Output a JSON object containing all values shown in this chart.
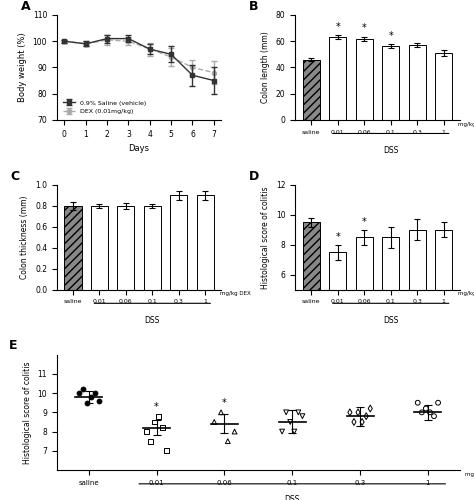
{
  "panel_A": {
    "days": [
      0,
      1,
      2,
      3,
      4,
      5,
      6,
      7
    ],
    "saline_mean": [
      100,
      99,
      101,
      101,
      97,
      95,
      87,
      85
    ],
    "saline_err": [
      0.5,
      1.0,
      1.5,
      1.2,
      2.0,
      3.0,
      4.0,
      5.0
    ],
    "dex_mean": [
      100,
      99,
      100.5,
      100,
      97,
      94,
      90,
      88
    ],
    "dex_err": [
      0.5,
      1.0,
      2.0,
      1.5,
      2.5,
      3.5,
      3.0,
      4.5
    ],
    "ylabel": "Body weight (%)",
    "xlabel": "Days",
    "ylim": [
      70,
      110
    ],
    "yticks": [
      70,
      80,
      90,
      100,
      110
    ],
    "label_saline": "0.9% Saline (vehicle)",
    "label_dex": "DEX (0.01mg/kg)"
  },
  "panel_B": {
    "categories": [
      "saline",
      "0.01",
      "0.06",
      "0.1",
      "0.3",
      "1"
    ],
    "means": [
      46,
      63,
      62,
      56,
      57,
      51
    ],
    "errors": [
      1.0,
      1.5,
      1.5,
      1.5,
      1.5,
      2.0
    ],
    "ylabel": "Colon length (mm)",
    "ylim": [
      0,
      80
    ],
    "yticks": [
      0,
      20,
      40,
      60,
      80
    ],
    "sig": [
      false,
      true,
      true,
      true,
      false,
      false
    ],
    "xlabel_dss": "DSS",
    "xlabel_mgkg": "mg/kg DEX"
  },
  "panel_C": {
    "categories": [
      "saline",
      "0.01",
      "0.06",
      "0.1",
      "0.3",
      "1"
    ],
    "means": [
      0.8,
      0.8,
      0.8,
      0.8,
      0.9,
      0.9
    ],
    "errors": [
      0.04,
      0.02,
      0.03,
      0.02,
      0.04,
      0.04
    ],
    "ylabel": "Colon thickness (mm)",
    "ylim": [
      0.0,
      1.0
    ],
    "yticks": [
      0.0,
      0.2,
      0.4,
      0.6,
      0.8,
      1.0
    ],
    "sig": [
      false,
      false,
      false,
      false,
      false,
      false
    ],
    "xlabel_dss": "DSS",
    "xlabel_mgkg": "mg/kg DEX"
  },
  "panel_D": {
    "categories": [
      "saline",
      "0.01",
      "0.06",
      "0.1",
      "0.3",
      "1"
    ],
    "means": [
      9.5,
      7.5,
      8.5,
      8.5,
      9.0,
      9.0
    ],
    "errors": [
      0.3,
      0.5,
      0.5,
      0.7,
      0.7,
      0.5
    ],
    "ylabel": "Histological score of colitis",
    "ylim": [
      5,
      12
    ],
    "yticks": [
      6,
      8,
      10,
      12
    ],
    "sig": [
      false,
      true,
      true,
      false,
      false,
      false
    ],
    "xlabel_dss": "DSS",
    "xlabel_mgkg": "mg/kg DEX"
  },
  "panel_E": {
    "categories": [
      "saline",
      "0.01",
      "0.06",
      "0.1",
      "0.3",
      "1"
    ],
    "group_means": [
      9.8,
      8.2,
      8.4,
      8.5,
      8.8,
      9.0
    ],
    "group_err": [
      0.3,
      0.4,
      0.5,
      0.6,
      0.5,
      0.4
    ],
    "saline_pts": [
      10.0,
      10.2,
      9.5,
      9.8,
      10.0,
      9.6
    ],
    "g001_pts": [
      8.0,
      7.5,
      8.5,
      8.8,
      8.2,
      7.0
    ],
    "g006_pts": [
      8.5,
      9.0,
      7.5,
      8.0
    ],
    "g01_pts": [
      8.0,
      9.0,
      8.5,
      8.0,
      9.0,
      8.8
    ],
    "g03_pts": [
      9.0,
      8.5,
      9.0,
      8.5,
      8.8,
      9.2
    ],
    "g1_pts": [
      9.5,
      9.0,
      9.2,
      9.0,
      8.8,
      9.5
    ],
    "ylabel": "Histological score of colitis",
    "ylim": [
      6,
      12
    ],
    "yticks": [
      7,
      8,
      9,
      10,
      11
    ],
    "sig": [
      false,
      true,
      true,
      false,
      false,
      false
    ],
    "xlabel_dss": "DSS",
    "xlabel_mgkg": "mg/kg DEX"
  },
  "hatch_pattern": "////",
  "bar_color_saline": "#888888",
  "bar_color_dss": "white",
  "bar_edgecolor": "black",
  "line_color_saline": "#333333",
  "line_color_dex": "#aaaaaa",
  "bg_color": "white",
  "sig_marker": "*"
}
